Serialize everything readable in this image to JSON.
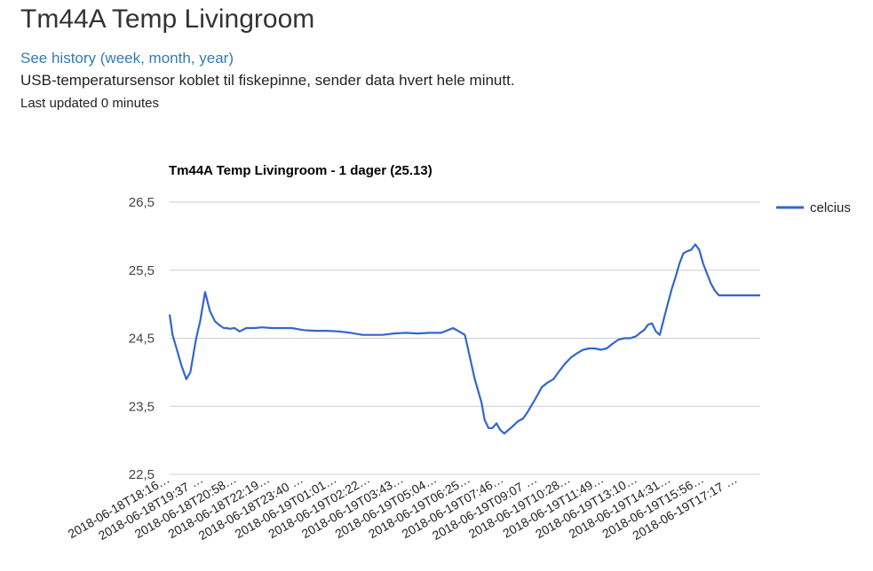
{
  "page": {
    "title": "Tm44A Temp Livingroom",
    "history_link": "See history (week, month, year)",
    "description": "USB-temperatursensor koblet til fiskepinne, sender data hvert hele minutt.",
    "last_updated_label": "Last updated",
    "last_updated_value": "0 minutes"
  },
  "colors": {
    "link": "#337ab7",
    "series": "#3366cc",
    "gridline": "#cccccc"
  },
  "chart_data": {
    "type": "line",
    "title": "Tm44A Temp Livingroom - 1 dager (25.13)",
    "xlabel": "",
    "ylabel": "",
    "ylim": [
      22.5,
      26.5
    ],
    "y_ticks": [
      "26,5",
      "25,5",
      "24,5",
      "23,5",
      "22,5"
    ],
    "y_tick_values": [
      26.5,
      25.5,
      24.5,
      23.5,
      22.5
    ],
    "x_tick_labels": [
      "2018-06-18T18:16…",
      "2018-06-18T19:37 …",
      "2018-06-18T20:58…",
      "2018-06-18T22:19…",
      "2018-06-18T23:40 …",
      "2018-06-19T01:01…",
      "2018-06-19T02:22…",
      "2018-06-19T03:43…",
      "2018-06-19T05:04…",
      "2018-06-19T06:25…",
      "2018-06-19T07:46…",
      "2018-06-19T09:07 …",
      "2018-06-19T10:28…",
      "2018-06-19T11:49…",
      "2018-06-19T13:10…",
      "2018-06-19T14:31…",
      "2018-06-19T15:56…",
      "2018-06-19T17:17 …"
    ],
    "legend_position": "right",
    "grid": true,
    "series": [
      {
        "name": "celcius",
        "x_hours": [
          0,
          0.15,
          0.35,
          0.6,
          0.85,
          1.05,
          1.2,
          1.35,
          1.55,
          1.8,
          2.05,
          2.3,
          2.5,
          2.65,
          2.75,
          2.9,
          3.05,
          3.3,
          3.55,
          3.9,
          4.3,
          4.7,
          5.2,
          5.7,
          6.2,
          6.8,
          7.4,
          8.0,
          8.6,
          9.2,
          9.8,
          10.2,
          10.8,
          11.4,
          12.0,
          12.6,
          13.2,
          13.8,
          14.4,
          15.0,
          15.5,
          15.85,
          16.0,
          16.2,
          16.4,
          16.6,
          16.8,
          17.0,
          17.2,
          17.4,
          17.7,
          17.95,
          18.15,
          18.35,
          18.6,
          18.9,
          19.2,
          19.5,
          19.8,
          20.1,
          20.4,
          20.7,
          21.0,
          21.3,
          21.6,
          21.9,
          22.2,
          22.5,
          22.8,
          23.1,
          23.4,
          23.7,
          23.9,
          24.1,
          24.3,
          24.5,
          24.7,
          24.9,
          25.1,
          25.3,
          25.5,
          25.7,
          25.9,
          26.1,
          26.3,
          26.5,
          26.7,
          26.9,
          27.1,
          27.3,
          27.5,
          27.7,
          27.9,
          28.1,
          28.3,
          28.55,
          28.8,
          29.0,
          29.2,
          29.4,
          29.6,
          29.8,
          30.0
        ],
        "values": [
          24.85,
          24.55,
          24.35,
          24.1,
          23.9,
          24.0,
          24.25,
          24.5,
          24.75,
          25.18,
          24.9,
          24.75,
          24.7,
          24.67,
          24.65,
          24.65,
          24.64,
          24.65,
          24.6,
          24.65,
          24.65,
          24.66,
          24.65,
          24.65,
          24.65,
          24.62,
          24.61,
          24.61,
          24.6,
          24.58,
          24.55,
          24.55,
          24.55,
          24.57,
          24.58,
          24.57,
          24.58,
          24.58,
          24.65,
          24.55,
          23.9,
          23.55,
          23.3,
          23.18,
          23.18,
          23.25,
          23.15,
          23.1,
          23.15,
          23.2,
          23.28,
          23.32,
          23.4,
          23.5,
          23.62,
          23.78,
          23.85,
          23.9,
          24.02,
          24.13,
          24.22,
          24.28,
          24.33,
          24.35,
          24.35,
          24.33,
          24.35,
          24.42,
          24.48,
          24.5,
          24.5,
          24.53,
          24.58,
          24.62,
          24.7,
          24.72,
          24.6,
          24.55,
          24.78,
          25.0,
          25.22,
          25.4,
          25.6,
          25.75,
          25.78,
          25.8,
          25.88,
          25.8,
          25.6,
          25.45,
          25.3,
          25.2,
          25.13,
          25.13,
          25.13,
          25.13,
          25.13,
          25.13,
          25.13,
          25.13,
          25.13,
          25.13,
          25.13
        ]
      }
    ]
  }
}
